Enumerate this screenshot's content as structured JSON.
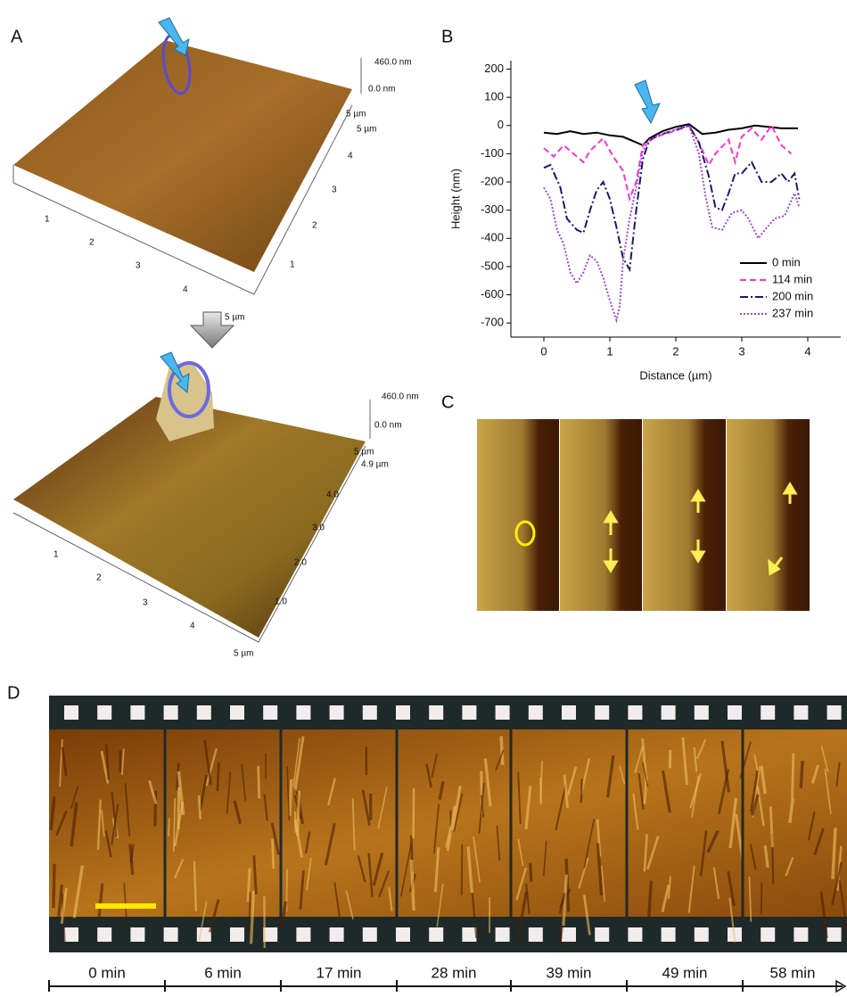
{
  "panels": {
    "A": {
      "label": "A",
      "top": {
        "z_max": "460.0 nm",
        "z_min": "0.0 nm",
        "y_end": "5 µm",
        "y_end2": "5 µm",
        "x_ticks": [
          "1",
          "2",
          "3",
          "4"
        ],
        "y_ticks": [
          "1",
          "2",
          "3",
          "4"
        ],
        "x_end": "5 µm"
      },
      "bottom": {
        "z_max": "460.0 nm",
        "z_min": "0.0 nm",
        "y_end": "5 µm",
        "y_end2": "4.9 µm",
        "x_ticks": [
          "1",
          "2",
          "3",
          "4"
        ],
        "y_ticks": [
          "1.0",
          "2.0",
          "3.0",
          "4.0"
        ],
        "x_end": "5 µm"
      }
    },
    "B": {
      "label": "B"
    },
    "C": {
      "label": "C"
    },
    "D": {
      "label": "D",
      "times": [
        "0 min",
        "6 min",
        "17 min",
        "28 min",
        "39 min",
        "49 min",
        "58 min"
      ]
    }
  },
  "chart_data": {
    "type": "line",
    "x_label": "Distance (µm)",
    "y_label": "Height (nm)",
    "xlim": [
      -0.5,
      4.5
    ],
    "ylim": [
      -750,
      230
    ],
    "xticks": [
      0,
      1,
      2,
      3,
      4
    ],
    "yticks": [
      -700,
      -600,
      -500,
      -400,
      -300,
      -200,
      -100,
      0,
      100,
      200
    ],
    "legend": "lower right",
    "series": [
      {
        "name": "0 min",
        "color": "#000000",
        "linestyle": "solid",
        "x": [
          0,
          0.2,
          0.4,
          0.6,
          0.8,
          1.0,
          1.2,
          1.4,
          1.5,
          1.6,
          1.8,
          2.0,
          2.2,
          2.4,
          2.6,
          2.8,
          3.0,
          3.2,
          3.4,
          3.6,
          3.85
        ],
        "values": [
          -25,
          -30,
          -20,
          -30,
          -25,
          -35,
          -40,
          -60,
          -70,
          -45,
          -20,
          -5,
          5,
          -30,
          -25,
          -15,
          -10,
          0,
          -5,
          -10,
          -10
        ]
      },
      {
        "name": "114 min",
        "color": "#ff33cc",
        "linestyle": "dashed",
        "x": [
          0,
          0.15,
          0.3,
          0.45,
          0.6,
          0.7,
          0.9,
          1.05,
          1.2,
          1.3,
          1.4,
          1.5,
          1.7,
          1.9,
          2.1,
          2.2,
          2.35,
          2.5,
          2.6,
          2.8,
          2.9,
          3.0,
          3.15,
          3.3,
          3.45,
          3.6,
          3.75
        ],
        "values": [
          -80,
          -110,
          -70,
          -100,
          -130,
          -90,
          -45,
          -110,
          -160,
          -260,
          -200,
          -70,
          -40,
          -25,
          -10,
          0,
          -60,
          -140,
          -100,
          -50,
          -130,
          -40,
          -10,
          -50,
          0,
          -70,
          -100
        ]
      },
      {
        "name": "200 min",
        "color": "#1a1a6e",
        "linestyle": "dashdot",
        "x": [
          0,
          0.1,
          0.25,
          0.35,
          0.5,
          0.6,
          0.7,
          0.8,
          0.9,
          1.0,
          1.1,
          1.2,
          1.3,
          1.4,
          1.5,
          1.6,
          1.8,
          2.0,
          2.2,
          2.35,
          2.5,
          2.6,
          2.7,
          2.8,
          2.9,
          3.0,
          3.15,
          3.3,
          3.45,
          3.6,
          3.7,
          3.8,
          3.87
        ],
        "values": [
          -150,
          -140,
          -220,
          -330,
          -370,
          -380,
          -300,
          -230,
          -200,
          -260,
          -360,
          -470,
          -510,
          -300,
          -120,
          -50,
          -30,
          -15,
          0,
          -60,
          -180,
          -290,
          -300,
          -240,
          -170,
          -170,
          -130,
          -200,
          -200,
          -170,
          -200,
          -170,
          -260
        ]
      },
      {
        "name": "237 min",
        "color": "#a04ad8",
        "linestyle": "dotted",
        "x": [
          0,
          0.1,
          0.2,
          0.3,
          0.4,
          0.5,
          0.6,
          0.7,
          0.8,
          0.9,
          1.0,
          1.1,
          1.15,
          1.2,
          1.3,
          1.4,
          1.5,
          1.6,
          1.8,
          2.0,
          2.2,
          2.35,
          2.45,
          2.55,
          2.7,
          2.85,
          3.0,
          3.1,
          3.25,
          3.35,
          3.5,
          3.65,
          3.8,
          3.87
        ],
        "values": [
          -220,
          -260,
          -370,
          -420,
          -520,
          -560,
          -520,
          -460,
          -480,
          -540,
          -620,
          -690,
          -640,
          -480,
          -330,
          -220,
          -90,
          -50,
          -30,
          -15,
          0,
          -100,
          -250,
          -360,
          -370,
          -310,
          -300,
          -330,
          -400,
          -370,
          -330,
          -320,
          -240,
          -290
        ]
      }
    ]
  }
}
